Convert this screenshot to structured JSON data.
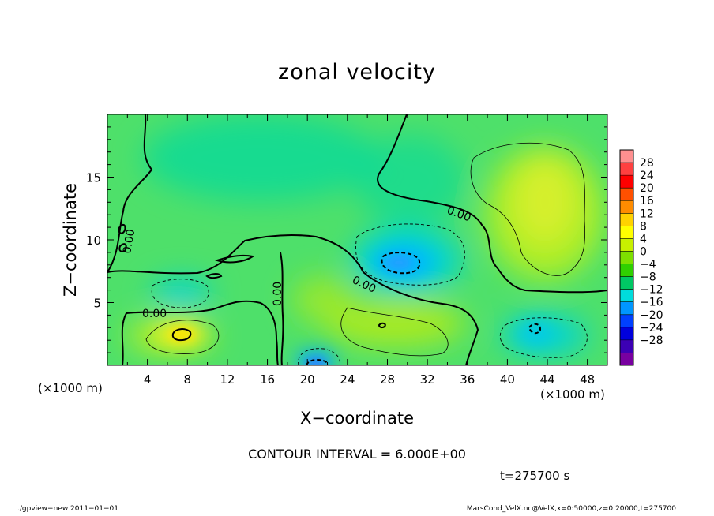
{
  "chart_data": {
    "type": "heatmap",
    "title": "zonal velocity",
    "xlabel": "X−coordinate",
    "ylabel": "Z−coordinate",
    "x_unit": "(×1000 m)",
    "y_unit": "(×1000 m)",
    "xlim": [
      0,
      50
    ],
    "ylim": [
      0,
      20
    ],
    "x_ticks": [
      "4",
      "8",
      "12",
      "16",
      "20",
      "24",
      "28",
      "32",
      "36",
      "40",
      "44",
      "48"
    ],
    "y_ticks": [
      "5",
      "10",
      "15"
    ],
    "colorbar_ticks": [
      "28",
      "24",
      "20",
      "16",
      "12",
      "8",
      "4",
      "0",
      "−4",
      "−8",
      "−12",
      "−16",
      "−20",
      "−24",
      "−28"
    ],
    "colorbar_colors": [
      "#ff9090",
      "#ff4040",
      "#ff0000",
      "#ff5000",
      "#ff8c00",
      "#ffd200",
      "#ffff00",
      "#c8f000",
      "#7ee000",
      "#30d000",
      "#00c864",
      "#00dcdc",
      "#0096ff",
      "#0040ff",
      "#0000dc",
      "#3c00b4",
      "#7800a0"
    ],
    "contour_interval": "CONTOUR INTERVAL = 6.000E+00",
    "contour_labels": [
      "0.00",
      "0.00",
      "0.00",
      "0.00",
      "0.00"
    ],
    "time_label": "t=275700 s",
    "features": [
      {
        "kind": "min",
        "x": 29.5,
        "z": 8.3,
        "value": -10
      },
      {
        "kind": "min",
        "x": 6.5,
        "z": 5.6,
        "value": -7
      },
      {
        "kind": "min",
        "x": 43,
        "z": 2.8,
        "value": -10
      },
      {
        "kind": "min",
        "x": 20.5,
        "z": 0.5,
        "value": -12
      },
      {
        "kind": "max",
        "x": 7.5,
        "z": 2.4,
        "value": 11
      },
      {
        "kind": "max",
        "x": 42.5,
        "z": 13.5,
        "value": 7
      },
      {
        "kind": "max",
        "x": 30,
        "z": 2.5,
        "value": 6
      }
    ]
  },
  "footer": {
    "left": "./gpview−new   2011−01−01",
    "right": "MarsCond_VelX.nc@VelX,x=0:50000,z=0:20000,t=275700"
  }
}
